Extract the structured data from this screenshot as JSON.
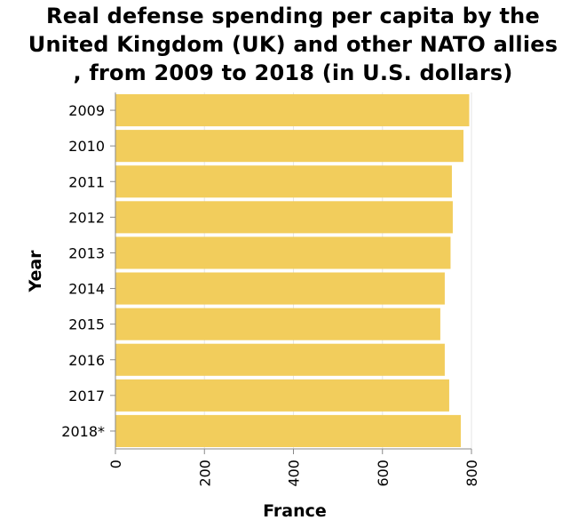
{
  "chart_data": {
    "type": "bar",
    "orientation": "horizontal",
    "title_lines": [
      "Real defense spending per capita by the",
      "United Kingdom (UK) and other NATO allies",
      ", from 2009 to 2018 (in U.S. dollars)"
    ],
    "xlabel": "France",
    "ylabel": "Year",
    "categories": [
      "2009",
      "2010",
      "2011",
      "2012",
      "2013",
      "2014",
      "2015",
      "2016",
      "2017",
      "2018*"
    ],
    "values": [
      795,
      782,
      756,
      758,
      753,
      740,
      730,
      740,
      750,
      776
    ],
    "xlim": [
      0,
      800
    ],
    "xticks": [
      0,
      200,
      400,
      600,
      800
    ],
    "bar_color": "#f2cd5c",
    "grid": true
  }
}
